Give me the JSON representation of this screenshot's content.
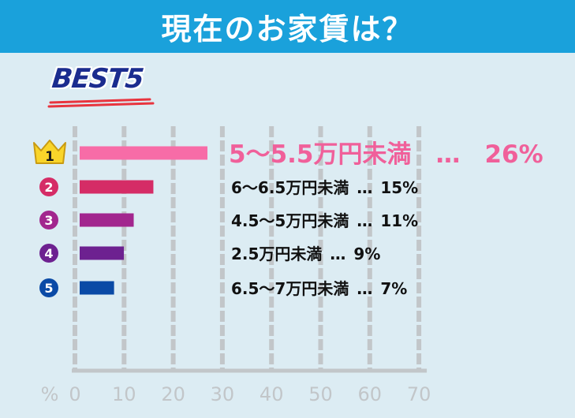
{
  "header": {
    "title": "現在のお家賃は？"
  },
  "badge": {
    "label": "BEST5"
  },
  "colors": {
    "header_bg": "#1aa1db",
    "page_bg": "#dcecf3",
    "grid": "#c2c6c9",
    "axis_text": "#c2c6c9",
    "rank1_text": "#f0609a"
  },
  "chart_data": {
    "type": "bar",
    "orientation": "horizontal",
    "x_unit_label": "%",
    "xlim": [
      0,
      70
    ],
    "x_ticks": [
      0,
      10,
      20,
      30,
      40,
      50,
      60,
      70
    ],
    "grid": true,
    "categories": [
      "5〜5.5万円未満",
      "6〜6.5万円未満",
      "4.5〜5万円未満",
      "2.5万円未満",
      "6.5〜7万円未満"
    ],
    "values": [
      26,
      15,
      11,
      9,
      7
    ],
    "value_labels": [
      "26%",
      "15%",
      "11%",
      "9%",
      "7%"
    ],
    "ranks": [
      "1",
      "2",
      "3",
      "4",
      "5"
    ],
    "bar_colors": [
      "#f76ca7",
      "#d52c66",
      "#a2268e",
      "#6d2190",
      "#0a4aa6"
    ],
    "separator": "…"
  }
}
